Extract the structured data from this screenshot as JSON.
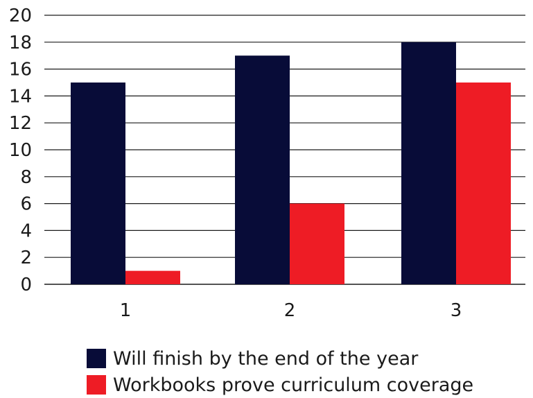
{
  "chart_data": {
    "type": "bar",
    "categories": [
      "1",
      "2",
      "3"
    ],
    "series": [
      {
        "name": "Will finish by the end of the year",
        "values": [
          15,
          17,
          18
        ],
        "color": "#080c38"
      },
      {
        "name": "Workbooks prove curriculum coverage",
        "values": [
          1,
          6,
          15
        ],
        "color": "#ee1c25"
      }
    ],
    "ylim": [
      0,
      20
    ],
    "yticks": [
      "0",
      "2",
      "4",
      "6",
      "8",
      "10",
      "12",
      "14",
      "16",
      "18",
      "20"
    ],
    "grid": true,
    "legend_position": "bottom"
  }
}
